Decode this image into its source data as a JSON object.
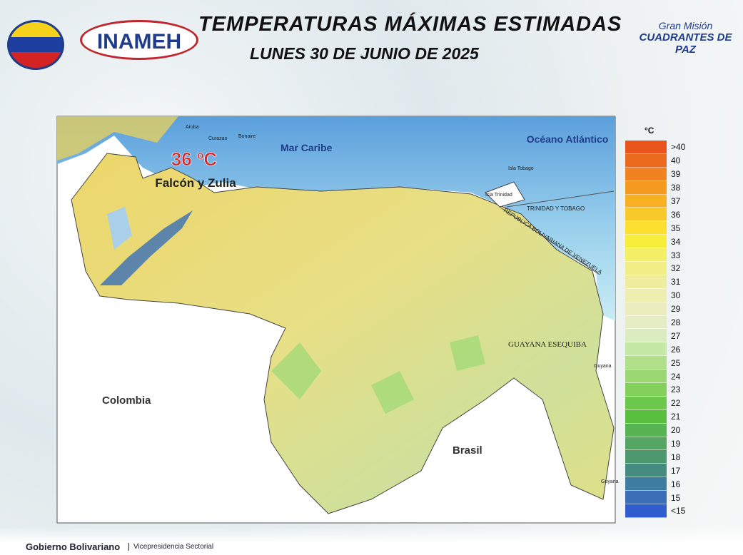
{
  "header": {
    "title": "TEMPERATURAS MÁXIMAS ESTIMADAS",
    "subtitle": "LUNES 30 DE JUNIO DE 2025",
    "logo_left": "INAMEH",
    "logo_right_top": "Gran Misión",
    "logo_right_bottom": "CUADRANTES DE PAZ"
  },
  "map": {
    "labels": {
      "sea": "Mar Caribe",
      "ocean": "Océano Atlántico",
      "colombia": "Colombia",
      "brasil": "Brasil",
      "guayana": "GUAYANA ESEQUIBA",
      "trinidad": "TRINIDAD Y TOBAGO",
      "border": "REPÚBLICA BOLIVARIANA DE VENEZUELA",
      "guyana_top": "Guyana",
      "guyana_bottom": "Guyana",
      "aruba": "Aruba",
      "curazao": "Curazao",
      "bonaire": "Bonaire",
      "trinidad_island": "Isla Trinidad",
      "tobago": "Isla Tobago"
    },
    "highlight": {
      "value": "36 ºC",
      "region": "Falcón y Zulia"
    }
  },
  "legend": {
    "unit": "°C",
    "items": [
      {
        "label": ">40",
        "color": "#e8541c"
      },
      {
        "label": 40,
        "color": "#ec6a1e"
      },
      {
        "label": 39,
        "color": "#f0821f"
      },
      {
        "label": 38,
        "color": "#f39a1f"
      },
      {
        "label": 37,
        "color": "#f6b022"
      },
      {
        "label": 36,
        "color": "#f9c829"
      },
      {
        "label": 35,
        "color": "#fbe032"
      },
      {
        "label": 34,
        "color": "#f7ee3c"
      },
      {
        "label": 33,
        "color": "#f3ef66"
      },
      {
        "label": 32,
        "color": "#f0ee84"
      },
      {
        "label": 31,
        "color": "#eeee9c"
      },
      {
        "label": 30,
        "color": "#eeeeb0"
      },
      {
        "label": 29,
        "color": "#ecedbe"
      },
      {
        "label": 28,
        "color": "#e5edc4"
      },
      {
        "label": 27,
        "color": "#dbedc0"
      },
      {
        "label": 26,
        "color": "#c6e8a6"
      },
      {
        "label": 25,
        "color": "#b1e08a"
      },
      {
        "label": 24,
        "color": "#9bd873"
      },
      {
        "label": 23,
        "color": "#84d05c"
      },
      {
        "label": 22,
        "color": "#6cc84a"
      },
      {
        "label": 21,
        "color": "#58c03e"
      },
      {
        "label": 20,
        "color": "#58b352"
      },
      {
        "label": 19,
        "color": "#55a562"
      },
      {
        "label": 18,
        "color": "#4e9870"
      },
      {
        "label": 17,
        "color": "#468b80"
      },
      {
        "label": 16,
        "color": "#3f7da0"
      },
      {
        "label": 15,
        "color": "#3a6fb8"
      },
      {
        "label": "<15",
        "color": "#2f5dd0"
      }
    ]
  },
  "footer": {
    "left": "Gobierno Bolivariano",
    "right": "Vicepresidencia Sectorial"
  }
}
